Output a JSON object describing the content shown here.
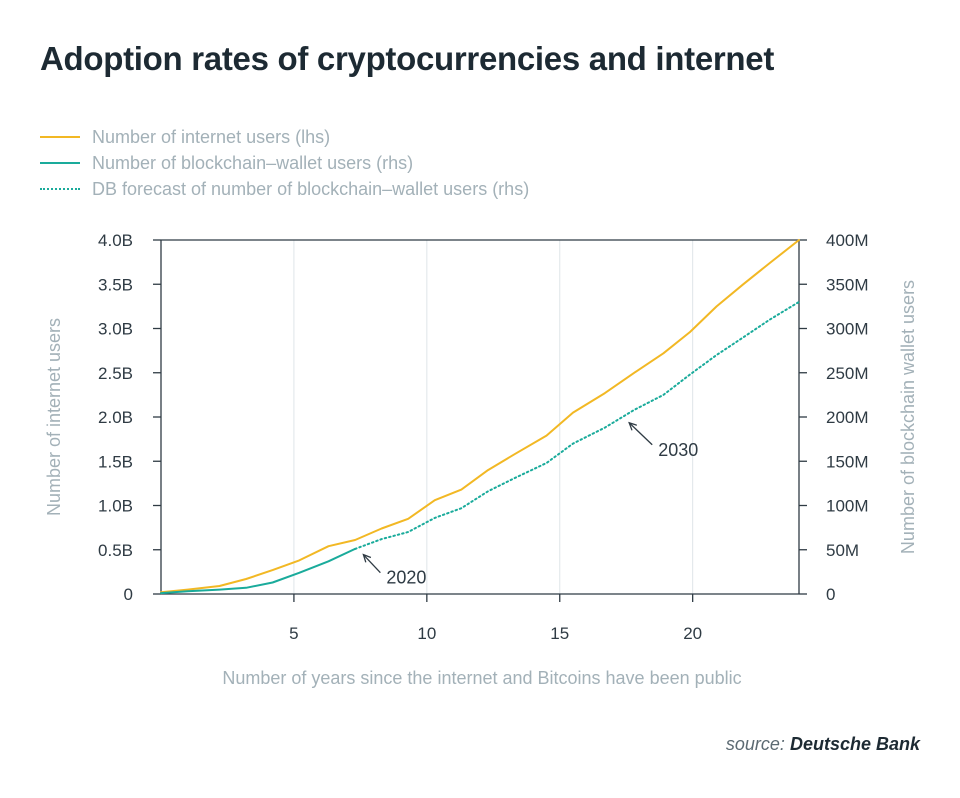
{
  "title": "Adoption rates of cryptocurrencies and internet",
  "source_prefix": "source:",
  "source_name": "Deutsche Bank",
  "chart_data": {
    "type": "line",
    "title": "Adoption rates of cryptocurrencies and internet",
    "xlabel": "Number of years since the internet and Bitcoins have been public",
    "ylabel_left": "Number of internet users",
    "ylabel_right": "Number of blockchain wallet users",
    "xlim": [
      0,
      24
    ],
    "ylim_left": [
      0,
      4.0
    ],
    "ylim_right": [
      0,
      400
    ],
    "x_ticks": [
      5,
      10,
      15,
      20
    ],
    "y_ticks_left": [
      "0",
      "0.5B",
      "1.0B",
      "1.5B",
      "2.0B",
      "2.5B",
      "3.0B",
      "3.5B",
      "4.0B"
    ],
    "y_ticks_right": [
      "0",
      "50M",
      "100M",
      "150M",
      "200M",
      "250M",
      "300M",
      "350M",
      "400M"
    ],
    "grid": "vertical at x ticks",
    "legend_position": "top-left",
    "series": [
      {
        "name": "Number of internet users (lhs)",
        "axis": "left",
        "unit": "billions",
        "color": "#f2b824",
        "style": "solid",
        "x": [
          0,
          1,
          2.2,
          3.2,
          4.2,
          5.2,
          6.3,
          7.3,
          8.3,
          9.3,
          10.3,
          11.3,
          12.3,
          13.3,
          14.5,
          15.5,
          16.7,
          17.8,
          18.9,
          19.9,
          20.9,
          21.9,
          22.9,
          24
        ],
        "values": [
          0.02,
          0.05,
          0.09,
          0.17,
          0.27,
          0.38,
          0.54,
          0.61,
          0.74,
          0.85,
          1.06,
          1.18,
          1.4,
          1.58,
          1.79,
          2.05,
          2.27,
          2.5,
          2.72,
          2.96,
          3.25,
          3.5,
          3.74,
          4.0
        ]
      },
      {
        "name": "Number of blockchain–wallet users (rhs)",
        "axis": "right",
        "unit": "millions",
        "color": "#1aab9b",
        "style": "solid",
        "x": [
          0,
          1,
          2.2,
          3.2,
          4.2,
          5.2,
          6.3,
          7.3
        ],
        "values": [
          1,
          3,
          5,
          7,
          13,
          24,
          37,
          51
        ]
      },
      {
        "name": "DB forecast of number of blockchain–wallet users (rhs)",
        "axis": "right",
        "unit": "millions",
        "color": "#1aab9b",
        "style": "dotted",
        "x": [
          7.3,
          8.3,
          9.3,
          10.3,
          11.3,
          12.3,
          13.3,
          14.5,
          15.5,
          16.7,
          17.8,
          18.9,
          19.9,
          20.9,
          21.9,
          22.9,
          24
        ],
        "values": [
          51,
          62,
          70,
          86,
          97,
          116,
          131,
          148,
          170,
          188,
          208,
          225,
          248,
          270,
          290,
          310,
          330
        ]
      }
    ],
    "annotations": [
      {
        "label": "2020",
        "x": 7.5,
        "y_right": 49
      },
      {
        "label": "2030",
        "x": 17.5,
        "y_right": 198
      }
    ]
  }
}
